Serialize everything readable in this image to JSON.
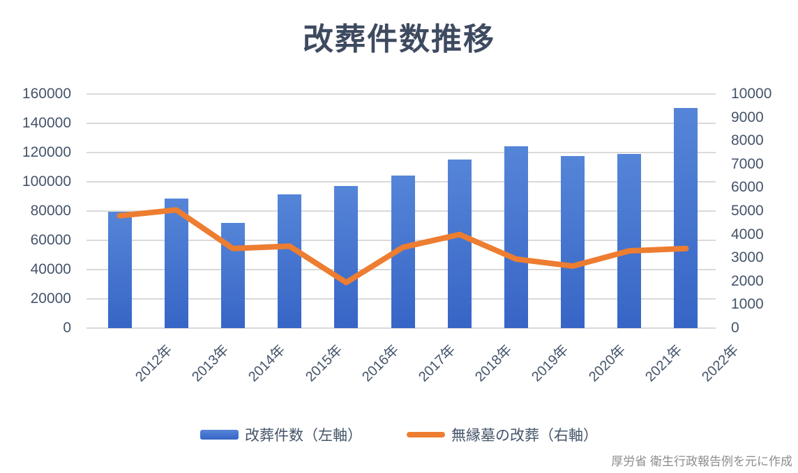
{
  "title": "改葬件数推移",
  "source_note": "厚労省 衛生行政報告例を元に作成",
  "legend": [
    {
      "label": "改葬件数（左軸）",
      "swatch": "bar-swatch",
      "color": "#4472C4"
    },
    {
      "label": "無縁墓の改葬（右軸）",
      "swatch": "line-swatch",
      "color": "#ED7D31"
    }
  ],
  "colors": {
    "bar_gradient_top": "#5585D8",
    "bar_gradient_bottom": "#3765C6",
    "bar": "#4472C4",
    "line": "#ED7D31",
    "gridline": "#D9D9D9",
    "axis_text": "#44546A",
    "title_text": "#3E4A5F",
    "source_text": "#8C8C8C"
  },
  "chart_data": {
    "type": "bar",
    "subtype": "combo-bar-line-dual-axis",
    "title": "改葬件数推移",
    "categories": [
      "2012年",
      "2013年",
      "2014年",
      "2015年",
      "2016年",
      "2017年",
      "2018年",
      "2019年",
      "2020年",
      "2021年",
      "2022年"
    ],
    "series": [
      {
        "name": "改葬件数（左軸）",
        "type": "bar",
        "axis": "left",
        "color": "#4472C4",
        "values": [
          79700,
          88400,
          72000,
          91600,
          97300,
          104500,
          115400,
          124300,
          117800,
          119000,
          150700
        ]
      },
      {
        "name": "無縁墓の改葬（右軸）",
        "type": "line",
        "axis": "right",
        "color": "#ED7D31",
        "values": [
          4800,
          5050,
          3400,
          3500,
          1950,
          3450,
          4000,
          2950,
          2650,
          3300,
          3400
        ]
      }
    ],
    "left_axis": {
      "min": 0,
      "max": 160000,
      "step": 20000,
      "tick_labels": [
        "160000",
        "140000",
        "120000",
        "100000",
        "80000",
        "60000",
        "40000",
        "20000",
        "0"
      ]
    },
    "right_axis": {
      "min": 0,
      "max": 10000,
      "step": 1000,
      "tick_labels": [
        "10000",
        "9000",
        "8000",
        "7000",
        "6000",
        "5000",
        "4000",
        "3000",
        "2000",
        "1000",
        "0"
      ]
    },
    "grid": "horizontal-only",
    "legend_position": "bottom",
    "x_label_rotation": 45
  }
}
